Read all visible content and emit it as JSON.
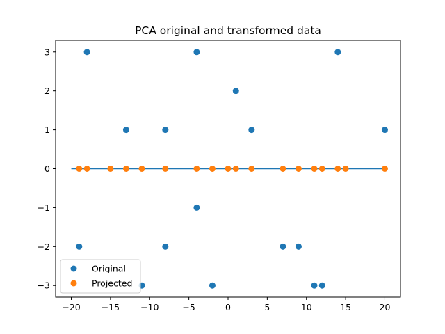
{
  "chart_data": {
    "type": "scatter",
    "title": "PCA original and transformed data",
    "xlabel": "",
    "ylabel": "",
    "xlim": [
      -22,
      22
    ],
    "ylim": [
      -3.3,
      3.3
    ],
    "xticks": [
      -20,
      -15,
      -10,
      -5,
      0,
      5,
      10,
      15,
      20
    ],
    "xtick_labels": [
      "−20",
      "−15",
      "−10",
      "−5",
      "0",
      "5",
      "10",
      "15",
      "20"
    ],
    "yticks": [
      -3,
      -2,
      -1,
      0,
      1,
      2,
      3
    ],
    "ytick_labels": [
      "−3",
      "−2",
      "−1",
      "0",
      "1",
      "2",
      "3"
    ],
    "grid": false,
    "legend_position": "lower left",
    "line": {
      "x": [
        -20,
        20
      ],
      "y": [
        0,
        0
      ],
      "color": "#1f77b4"
    },
    "series": [
      {
        "name": "Original",
        "color": "#1f77b4",
        "points": [
          [
            -18,
            3
          ],
          [
            -4,
            3
          ],
          [
            14,
            3
          ],
          [
            1,
            2
          ],
          [
            -13,
            1
          ],
          [
            -8,
            1
          ],
          [
            3,
            1
          ],
          [
            20,
            1
          ],
          [
            -4,
            -1
          ],
          [
            -19,
            -2
          ],
          [
            -8,
            -2
          ],
          [
            7,
            -2
          ],
          [
            9,
            -2
          ],
          [
            -11,
            -3
          ],
          [
            -2,
            -3
          ],
          [
            11,
            -3
          ],
          [
            12,
            -3
          ]
        ]
      },
      {
        "name": "Projected",
        "color": "#ff7f0e",
        "points": [
          [
            -19,
            0
          ],
          [
            -18,
            0
          ],
          [
            -15,
            0
          ],
          [
            -13,
            0
          ],
          [
            -11,
            0
          ],
          [
            -8,
            0
          ],
          [
            -4,
            0
          ],
          [
            -2,
            0
          ],
          [
            0,
            0
          ],
          [
            1,
            0
          ],
          [
            3,
            0
          ],
          [
            7,
            0
          ],
          [
            9,
            0
          ],
          [
            11,
            0
          ],
          [
            12,
            0
          ],
          [
            14,
            0
          ],
          [
            15,
            0
          ],
          [
            20,
            0
          ]
        ]
      }
    ]
  }
}
